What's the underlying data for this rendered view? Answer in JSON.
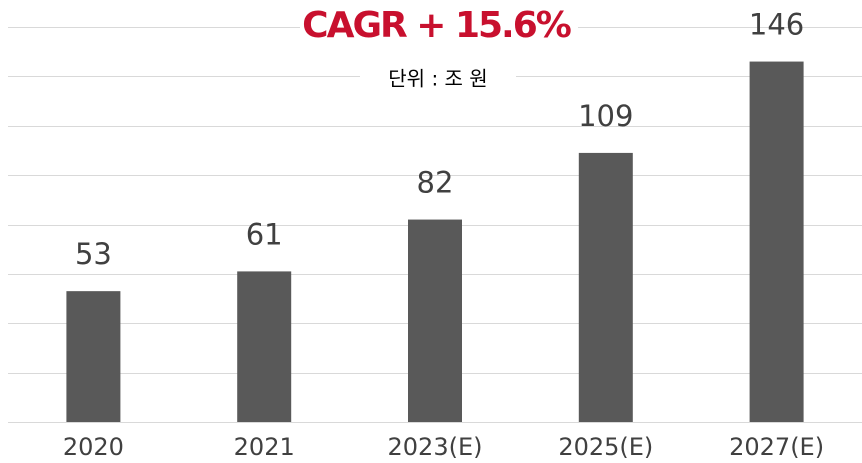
{
  "chart_data": {
    "type": "bar",
    "title": "CAGR + 15.6%",
    "subtitle": "단위 : 조 원",
    "categories": [
      "2020",
      "2021",
      "2023(E)",
      "2025(E)",
      "2027(E)"
    ],
    "values": [
      53,
      61,
      82,
      109,
      146
    ],
    "color": "#595959",
    "title_color": "#c8102e",
    "ylim": [
      0,
      160
    ],
    "yticks": [
      0,
      20,
      40,
      60,
      80,
      100,
      120,
      140,
      160
    ],
    "grid": true
  }
}
